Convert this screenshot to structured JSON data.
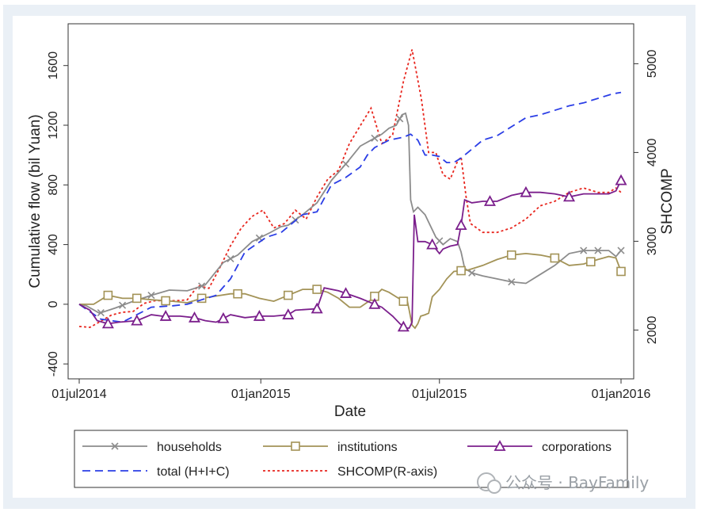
{
  "chart_data": {
    "type": "line",
    "xlabel": "Date",
    "ylabel_left": "Cumulative flow (bil Yuan)",
    "ylabel_right": "SHCOMP",
    "x_ticks": [
      "01jul2014",
      "01jan2015",
      "01jul2015",
      "01jan2016"
    ],
    "x_range_days": [
      0,
      549
    ],
    "y_left_ticks": [
      "-400",
      "0",
      "400",
      "800",
      "1200",
      "1600"
    ],
    "y_left_range": [
      -500,
      1880
    ],
    "y_right_ticks": [
      "2000",
      "3000",
      "4000",
      "5000"
    ],
    "y_right_range": [
      1450,
      5450
    ],
    "grid": false,
    "legend_position": "bottom",
    "colors": {
      "households": "#8c8c8c",
      "institutions": "#a39357",
      "corporations": "#7b1f8c",
      "total": "#2b3ee6",
      "shcomp": "#e8261e"
    },
    "series": [
      {
        "name": "households",
        "axis": "left",
        "marker": "x",
        "points": [
          [
            0,
            0
          ],
          [
            10,
            -10
          ],
          [
            28,
            -60
          ],
          [
            50,
            -25
          ],
          [
            75,
            20
          ],
          [
            100,
            60
          ],
          [
            125,
            95
          ],
          [
            150,
            90
          ],
          [
            175,
            130
          ],
          [
            200,
            280
          ],
          [
            220,
            330
          ],
          [
            240,
            420
          ],
          [
            265,
            480
          ],
          [
            280,
            520
          ],
          [
            290,
            530
          ],
          [
            310,
            600
          ],
          [
            330,
            680
          ],
          [
            350,
            830
          ],
          [
            370,
            940
          ],
          [
            390,
            1060
          ],
          [
            405,
            1100
          ],
          [
            420,
            1140
          ],
          [
            430,
            1180
          ],
          [
            440,
            1200
          ],
          [
            448,
            1270
          ],
          [
            453,
            1280
          ],
          [
            457,
            1200
          ],
          [
            460,
            700
          ],
          [
            464,
            620
          ],
          [
            470,
            650
          ],
          [
            480,
            600
          ],
          [
            495,
            450
          ],
          [
            505,
            400
          ],
          [
            515,
            440
          ],
          [
            525,
            420
          ],
          [
            530,
            350
          ],
          [
            535,
            240
          ],
          [
            545,
            210
          ],
          [
            560,
            190
          ],
          [
            580,
            170
          ],
          [
            600,
            150
          ],
          [
            620,
            140
          ],
          [
            640,
            200
          ],
          [
            660,
            260
          ],
          [
            680,
            340
          ],
          [
            700,
            360
          ],
          [
            720,
            360
          ],
          [
            735,
            360
          ],
          [
            745,
            320
          ],
          [
            752,
            360
          ]
        ],
        "markers_at": [
          30,
          60,
          100,
          170,
          210,
          250,
          300,
          370,
          410,
          445,
          500,
          545,
          600,
          700,
          720,
          752
        ]
      },
      {
        "name": "institutions",
        "axis": "left",
        "marker": "square",
        "points": [
          [
            0,
            0
          ],
          [
            20,
            0
          ],
          [
            40,
            60
          ],
          [
            60,
            40
          ],
          [
            80,
            40
          ],
          [
            100,
            30
          ],
          [
            115,
            25
          ],
          [
            130,
            20
          ],
          [
            150,
            10
          ],
          [
            170,
            40
          ],
          [
            190,
            55
          ],
          [
            210,
            70
          ],
          [
            230,
            70
          ],
          [
            250,
            40
          ],
          [
            270,
            20
          ],
          [
            290,
            60
          ],
          [
            310,
            100
          ],
          [
            330,
            100
          ],
          [
            345,
            80
          ],
          [
            360,
            40
          ],
          [
            375,
            -20
          ],
          [
            390,
            -20
          ],
          [
            405,
            30
          ],
          [
            420,
            100
          ],
          [
            430,
            80
          ],
          [
            440,
            50
          ],
          [
            450,
            20
          ],
          [
            455,
            30
          ],
          [
            458,
            -40
          ],
          [
            462,
            -140
          ],
          [
            466,
            -160
          ],
          [
            470,
            -130
          ],
          [
            474,
            -80
          ],
          [
            480,
            -70
          ],
          [
            485,
            -60
          ],
          [
            490,
            50
          ],
          [
            500,
            100
          ],
          [
            510,
            170
          ],
          [
            520,
            220
          ],
          [
            540,
            230
          ],
          [
            560,
            260
          ],
          [
            580,
            300
          ],
          [
            600,
            330
          ],
          [
            620,
            340
          ],
          [
            640,
            330
          ],
          [
            660,
            310
          ],
          [
            680,
            260
          ],
          [
            700,
            270
          ],
          [
            720,
            300
          ],
          [
            735,
            320
          ],
          [
            745,
            310
          ],
          [
            752,
            220
          ]
        ],
        "markers_at": [
          40,
          80,
          120,
          170,
          220,
          290,
          330,
          410,
          450,
          530,
          600,
          660,
          710,
          752
        ]
      },
      {
        "name": "corporations",
        "axis": "left",
        "marker": "triangle",
        "points": [
          [
            0,
            0
          ],
          [
            15,
            -40
          ],
          [
            25,
            -110
          ],
          [
            40,
            -130
          ],
          [
            55,
            -120
          ],
          [
            80,
            -110
          ],
          [
            100,
            -70
          ],
          [
            115,
            -80
          ],
          [
            125,
            -80
          ],
          [
            140,
            -80
          ],
          [
            160,
            -90
          ],
          [
            175,
            -110
          ],
          [
            190,
            -120
          ],
          [
            210,
            -70
          ],
          [
            230,
            -90
          ],
          [
            250,
            -80
          ],
          [
            270,
            -80
          ],
          [
            290,
            -70
          ],
          [
            300,
            -40
          ],
          [
            330,
            -30
          ],
          [
            340,
            110
          ],
          [
            360,
            90
          ],
          [
            390,
            40
          ],
          [
            420,
            -20
          ],
          [
            435,
            -80
          ],
          [
            445,
            -130
          ],
          [
            452,
            -160
          ],
          [
            458,
            -160
          ],
          [
            462,
            -120
          ],
          [
            465,
            600
          ],
          [
            470,
            420
          ],
          [
            480,
            420
          ],
          [
            490,
            400
          ],
          [
            500,
            340
          ],
          [
            505,
            370
          ],
          [
            515,
            390
          ],
          [
            525,
            400
          ],
          [
            530,
            530
          ],
          [
            535,
            700
          ],
          [
            545,
            680
          ],
          [
            560,
            690
          ],
          [
            580,
            690
          ],
          [
            600,
            730
          ],
          [
            620,
            750
          ],
          [
            640,
            750
          ],
          [
            660,
            740
          ],
          [
            680,
            720
          ],
          [
            700,
            740
          ],
          [
            720,
            740
          ],
          [
            735,
            740
          ],
          [
            745,
            760
          ],
          [
            752,
            830
          ]
        ],
        "markers_at": [
          40,
          80,
          120,
          160,
          200,
          250,
          290,
          330,
          370,
          410,
          450,
          490,
          530,
          570,
          620,
          680,
          752
        ]
      },
      {
        "name": "total (H+I+C)",
        "axis": "left",
        "marker": "none",
        "points": [
          [
            0,
            0
          ],
          [
            30,
            -100
          ],
          [
            60,
            -120
          ],
          [
            100,
            -20
          ],
          [
            130,
            -10
          ],
          [
            150,
            0
          ],
          [
            170,
            30
          ],
          [
            190,
            60
          ],
          [
            210,
            170
          ],
          [
            230,
            350
          ],
          [
            260,
            450
          ],
          [
            280,
            480
          ],
          [
            310,
            600
          ],
          [
            330,
            620
          ],
          [
            350,
            800
          ],
          [
            370,
            850
          ],
          [
            390,
            920
          ],
          [
            400,
            1000
          ],
          [
            410,
            1050
          ],
          [
            430,
            1100
          ],
          [
            450,
            1120
          ],
          [
            460,
            1140
          ],
          [
            470,
            1100
          ],
          [
            480,
            1000
          ],
          [
            490,
            1000
          ],
          [
            500,
            990
          ],
          [
            510,
            950
          ],
          [
            520,
            950
          ],
          [
            530,
            980
          ],
          [
            540,
            1020
          ],
          [
            560,
            1100
          ],
          [
            580,
            1130
          ],
          [
            600,
            1190
          ],
          [
            620,
            1250
          ],
          [
            640,
            1270
          ],
          [
            660,
            1300
          ],
          [
            680,
            1330
          ],
          [
            700,
            1350
          ],
          [
            720,
            1380
          ],
          [
            740,
            1410
          ],
          [
            752,
            1420
          ]
        ]
      },
      {
        "name": "SHCOMP(R-axis)",
        "axis": "right",
        "marker": "none",
        "points": [
          [
            0,
            2040
          ],
          [
            15,
            2030
          ],
          [
            30,
            2100
          ],
          [
            45,
            2170
          ],
          [
            60,
            2200
          ],
          [
            75,
            2210
          ],
          [
            90,
            2300
          ],
          [
            105,
            2330
          ],
          [
            120,
            2330
          ],
          [
            135,
            2330
          ],
          [
            150,
            2340
          ],
          [
            165,
            2500
          ],
          [
            180,
            2470
          ],
          [
            195,
            2700
          ],
          [
            210,
            2950
          ],
          [
            225,
            3150
          ],
          [
            240,
            3280
          ],
          [
            255,
            3350
          ],
          [
            270,
            3150
          ],
          [
            285,
            3200
          ],
          [
            300,
            3350
          ],
          [
            315,
            3250
          ],
          [
            330,
            3500
          ],
          [
            345,
            3700
          ],
          [
            360,
            3800
          ],
          [
            375,
            4100
          ],
          [
            390,
            4300
          ],
          [
            405,
            4500
          ],
          [
            420,
            4100
          ],
          [
            435,
            4200
          ],
          [
            450,
            4800
          ],
          [
            462,
            5160
          ],
          [
            475,
            4600
          ],
          [
            485,
            4000
          ],
          [
            495,
            4000
          ],
          [
            505,
            3750
          ],
          [
            515,
            3700
          ],
          [
            525,
            3900
          ],
          [
            530,
            3950
          ],
          [
            537,
            3500
          ],
          [
            543,
            3200
          ],
          [
            560,
            3100
          ],
          [
            580,
            3100
          ],
          [
            600,
            3150
          ],
          [
            620,
            3250
          ],
          [
            640,
            3400
          ],
          [
            660,
            3450
          ],
          [
            680,
            3550
          ],
          [
            700,
            3600
          ],
          [
            720,
            3550
          ],
          [
            735,
            3550
          ],
          [
            745,
            3600
          ],
          [
            752,
            3550
          ]
        ]
      }
    ]
  },
  "watermark": "公众号 · BayFamily"
}
